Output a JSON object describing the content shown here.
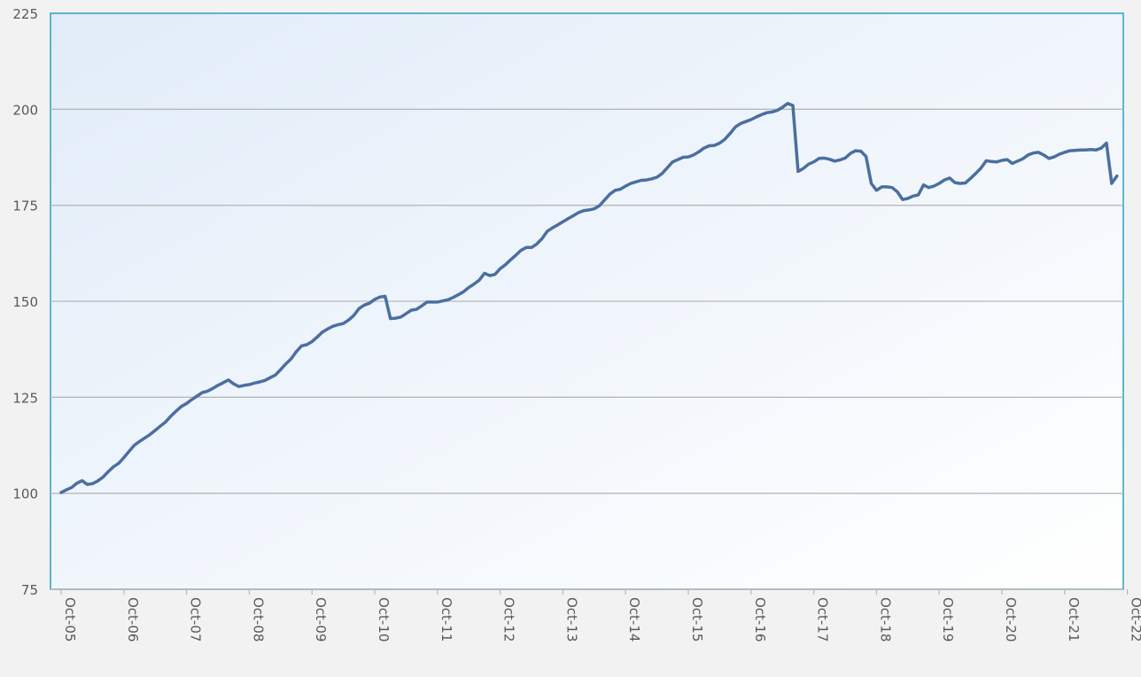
{
  "chart_data": {
    "type": "line",
    "title": "",
    "xlabel": "",
    "ylabel": "",
    "ylim": [
      75,
      225
    ],
    "yticks": [
      75,
      100,
      125,
      150,
      175,
      200,
      225
    ],
    "xticks": [
      "Oct-05",
      "Oct-06",
      "Oct-07",
      "Oct-08",
      "Oct-09",
      "Oct-10",
      "Oct-11",
      "Oct-12",
      "Oct-13",
      "Oct-14",
      "Oct-15",
      "Oct-16",
      "Oct-17",
      "Oct-18",
      "Oct-19",
      "Oct-20",
      "Oct-21",
      "Oct-22"
    ],
    "grid": true,
    "legend": "none",
    "series": [
      {
        "color": "#4a6fa0",
        "points": [
          [
            "Oct-05",
            100.2
          ],
          [
            "Nov-05",
            100.9
          ],
          [
            "Dec-05",
            101.5
          ],
          [
            "Jan-06",
            102.6
          ],
          [
            "Feb-06",
            103.3
          ],
          [
            "Mar-06",
            102.3
          ],
          [
            "Apr-06",
            102.5
          ],
          [
            "May-06",
            103.2
          ],
          [
            "Jun-06",
            104.2
          ],
          [
            "Jul-06",
            105.6
          ],
          [
            "Aug-06",
            106.9
          ],
          [
            "Sep-06",
            107.8
          ],
          [
            "Oct-06",
            109.3
          ],
          [
            "Nov-06",
            110.9
          ],
          [
            "Dec-06",
            112.5
          ],
          [
            "Jan-07",
            113.5
          ],
          [
            "Feb-07",
            114.4
          ],
          [
            "Mar-07",
            115.3
          ],
          [
            "Apr-07",
            116.4
          ],
          [
            "May-07",
            117.5
          ],
          [
            "Jun-07",
            118.6
          ],
          [
            "Jul-07",
            120.1
          ],
          [
            "Aug-07",
            121.4
          ],
          [
            "Sep-07",
            122.6
          ],
          [
            "Oct-07",
            123.4
          ],
          [
            "Nov-07",
            124.4
          ],
          [
            "Dec-07",
            125.3
          ],
          [
            "Jan-08",
            126.2
          ],
          [
            "Feb-08",
            126.6
          ],
          [
            "Mar-08",
            127.3
          ],
          [
            "Apr-08",
            128.1
          ],
          [
            "May-08",
            128.8
          ],
          [
            "Jun-08",
            129.5
          ],
          [
            "Jul-08",
            128.5
          ],
          [
            "Aug-08",
            127.8
          ],
          [
            "Sep-08",
            128.1
          ],
          [
            "Oct-08",
            128.3
          ],
          [
            "Nov-08",
            128.7
          ],
          [
            "Dec-08",
            129.0
          ],
          [
            "Jan-09",
            129.4
          ],
          [
            "Feb-09",
            130.1
          ],
          [
            "Mar-09",
            130.8
          ],
          [
            "Apr-09",
            132.2
          ],
          [
            "May-09",
            133.7
          ],
          [
            "Jun-09",
            135.0
          ],
          [
            "Jul-09",
            136.9
          ],
          [
            "Aug-09",
            138.4
          ],
          [
            "Sep-09",
            138.7
          ],
          [
            "Oct-09",
            139.5
          ],
          [
            "Nov-09",
            140.7
          ],
          [
            "Dec-09",
            142.0
          ],
          [
            "Jan-10",
            142.8
          ],
          [
            "Feb-10",
            143.5
          ],
          [
            "Mar-10",
            143.9
          ],
          [
            "Apr-10",
            144.2
          ],
          [
            "May-10",
            145.1
          ],
          [
            "Jun-10",
            146.3
          ],
          [
            "Jul-10",
            148.1
          ],
          [
            "Aug-10",
            149.0
          ],
          [
            "Sep-10",
            149.5
          ],
          [
            "Oct-10",
            150.5
          ],
          [
            "Nov-10",
            151.1
          ],
          [
            "Dec-10",
            151.3
          ],
          [
            "Jan-11",
            145.5
          ],
          [
            "Feb-11",
            145.6
          ],
          [
            "Mar-11",
            145.9
          ],
          [
            "Apr-11",
            146.8
          ],
          [
            "May-11",
            147.7
          ],
          [
            "Jun-11",
            147.9
          ],
          [
            "Jul-11",
            148.8
          ],
          [
            "Aug-11",
            149.8
          ],
          [
            "Sep-11",
            149.8
          ],
          [
            "Oct-11",
            149.8
          ],
          [
            "Nov-11",
            150.1
          ],
          [
            "Dec-11",
            150.4
          ],
          [
            "Jan-12",
            151.0
          ],
          [
            "Feb-12",
            151.7
          ],
          [
            "Mar-12",
            152.5
          ],
          [
            "Apr-12",
            153.6
          ],
          [
            "May-12",
            154.5
          ],
          [
            "Jun-12",
            155.5
          ],
          [
            "Jul-12",
            157.3
          ],
          [
            "Aug-12",
            156.7
          ],
          [
            "Sep-12",
            157.0
          ],
          [
            "Oct-12",
            158.5
          ],
          [
            "Nov-12",
            159.5
          ],
          [
            "Dec-12",
            160.8
          ],
          [
            "Jan-13",
            162.0
          ],
          [
            "Feb-13",
            163.3
          ],
          [
            "Mar-13",
            164.0
          ],
          [
            "Apr-13",
            164.0
          ],
          [
            "May-13",
            164.9
          ],
          [
            "Jun-13",
            166.3
          ],
          [
            "Jul-13",
            168.2
          ],
          [
            "Aug-13",
            169.1
          ],
          [
            "Sep-13",
            169.9
          ],
          [
            "Oct-13",
            170.7
          ],
          [
            "Nov-13",
            171.5
          ],
          [
            "Dec-13",
            172.3
          ],
          [
            "Jan-14",
            173.1
          ],
          [
            "Feb-14",
            173.6
          ],
          [
            "Mar-14",
            173.8
          ],
          [
            "Apr-14",
            174.1
          ],
          [
            "May-14",
            174.9
          ],
          [
            "Jun-14",
            176.4
          ],
          [
            "Jul-14",
            177.9
          ],
          [
            "Aug-14",
            178.9
          ],
          [
            "Sep-14",
            179.2
          ],
          [
            "Oct-14",
            180.0
          ],
          [
            "Nov-14",
            180.7
          ],
          [
            "Dec-14",
            181.1
          ],
          [
            "Jan-15",
            181.5
          ],
          [
            "Feb-15",
            181.6
          ],
          [
            "Mar-15",
            181.9
          ],
          [
            "Apr-15",
            182.3
          ],
          [
            "May-15",
            183.3
          ],
          [
            "Jun-15",
            184.8
          ],
          [
            "Jul-15",
            186.3
          ],
          [
            "Aug-15",
            186.9
          ],
          [
            "Sep-15",
            187.5
          ],
          [
            "Oct-15",
            187.6
          ],
          [
            "Nov-15",
            188.1
          ],
          [
            "Dec-15",
            188.9
          ],
          [
            "Jan-16",
            189.9
          ],
          [
            "Feb-16",
            190.5
          ],
          [
            "Mar-16",
            190.6
          ],
          [
            "Apr-16",
            191.2
          ],
          [
            "May-16",
            192.2
          ],
          [
            "Jun-16",
            193.7
          ],
          [
            "Jul-16",
            195.4
          ],
          [
            "Aug-16",
            196.3
          ],
          [
            "Sep-16",
            196.8
          ],
          [
            "Oct-16",
            197.3
          ],
          [
            "Nov-16",
            198.0
          ],
          [
            "Dec-16",
            198.6
          ],
          [
            "Jan-17",
            199.1
          ],
          [
            "Feb-17",
            199.3
          ],
          [
            "Mar-17",
            199.7
          ],
          [
            "Apr-17",
            200.5
          ],
          [
            "May-17",
            201.5
          ],
          [
            "Jun-17",
            201.0
          ],
          [
            "Jul-17",
            183.8
          ],
          [
            "Aug-17",
            184.6
          ],
          [
            "Sep-17",
            185.7
          ],
          [
            "Oct-17",
            186.3
          ],
          [
            "Nov-17",
            187.2
          ],
          [
            "Dec-17",
            187.3
          ],
          [
            "Jan-18",
            187.0
          ],
          [
            "Feb-18",
            186.5
          ],
          [
            "Mar-18",
            186.8
          ],
          [
            "Apr-18",
            187.3
          ],
          [
            "May-18",
            188.5
          ],
          [
            "Jun-18",
            189.2
          ],
          [
            "Jul-18",
            189.1
          ],
          [
            "Aug-18",
            187.7
          ],
          [
            "Sep-18",
            180.7
          ],
          [
            "Oct-18",
            178.9
          ],
          [
            "Nov-18",
            179.8
          ],
          [
            "Dec-18",
            179.8
          ],
          [
            "Jan-19",
            179.6
          ],
          [
            "Feb-19",
            178.5
          ],
          [
            "Mar-19",
            176.5
          ],
          [
            "Apr-19",
            176.8
          ],
          [
            "May-19",
            177.4
          ],
          [
            "Jun-19",
            177.7
          ],
          [
            "Jul-19",
            180.3
          ],
          [
            "Aug-19",
            179.6
          ],
          [
            "Sep-19",
            180.0
          ],
          [
            "Oct-19",
            180.7
          ],
          [
            "Nov-19",
            181.6
          ],
          [
            "Dec-19",
            182.1
          ],
          [
            "Jan-20",
            180.9
          ],
          [
            "Feb-20",
            180.7
          ],
          [
            "Mar-20",
            180.8
          ],
          [
            "Apr-20",
            182.0
          ],
          [
            "May-20",
            183.3
          ],
          [
            "Jun-20",
            184.7
          ],
          [
            "Jul-20",
            186.6
          ],
          [
            "Aug-20",
            186.4
          ],
          [
            "Sep-20",
            186.3
          ],
          [
            "Oct-20",
            186.7
          ],
          [
            "Nov-20",
            186.9
          ],
          [
            "Dec-20",
            185.9
          ],
          [
            "Jan-21",
            186.5
          ],
          [
            "Feb-21",
            187.1
          ],
          [
            "Mar-21",
            188.1
          ],
          [
            "Apr-21",
            188.6
          ],
          [
            "May-21",
            188.8
          ],
          [
            "Jun-21",
            188.1
          ],
          [
            "Jul-21",
            187.2
          ],
          [
            "Aug-21",
            187.6
          ],
          [
            "Sep-21",
            188.3
          ],
          [
            "Oct-21",
            188.8
          ],
          [
            "Nov-21",
            189.2
          ],
          [
            "Dec-21",
            189.3
          ],
          [
            "Jan-22",
            189.4
          ],
          [
            "Feb-22",
            189.4
          ],
          [
            "Mar-22",
            189.5
          ],
          [
            "Apr-22",
            189.4
          ],
          [
            "May-22",
            189.9
          ],
          [
            "Jun-22",
            191.2
          ],
          [
            "Jul-22",
            180.7
          ],
          [
            "Aug-22",
            182.6
          ]
        ]
      }
    ]
  }
}
